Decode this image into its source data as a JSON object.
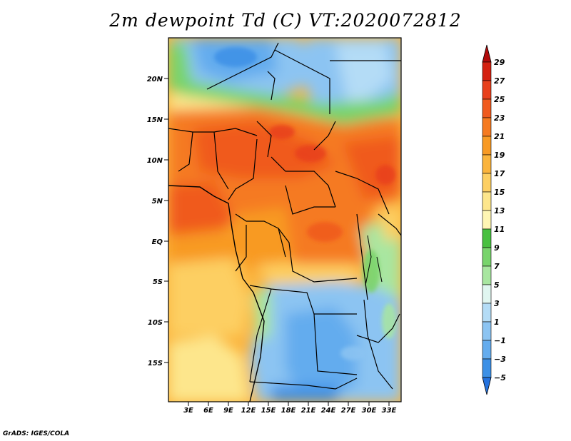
{
  "title": "2m dewpoint Td (C) VT:2020072812",
  "credit": "GrADS: IGES/COLA",
  "lat_labels": [
    "20N",
    "15N",
    "10N",
    "5N",
    "EQ",
    "5S",
    "10S",
    "15S"
  ],
  "lon_labels": [
    "3E",
    "6E",
    "9E",
    "12E",
    "15E",
    "18E",
    "21E",
    "24E",
    "27E",
    "30E",
    "33E"
  ],
  "colorbar": {
    "labels": [
      "29",
      "27",
      "25",
      "23",
      "21",
      "19",
      "17",
      "15",
      "13",
      "11",
      "9",
      "7",
      "5",
      "3",
      "1",
      "−1",
      "−3",
      "−5"
    ],
    "colors": [
      "#b10a0a",
      "#d42010",
      "#e8401c",
      "#f05a1e",
      "#f57a20",
      "#f89a24",
      "#fbb43c",
      "#fdcf62",
      "#fde68c",
      "#fef6b4",
      "#48c040",
      "#78d46c",
      "#a8e6a0",
      "#e0f6f0",
      "#b4dcf6",
      "#8cc4f2",
      "#64acee",
      "#3c90e6",
      "#2472de"
    ]
  },
  "colors": {
    "frame": "#000000",
    "border": "#000000"
  }
}
